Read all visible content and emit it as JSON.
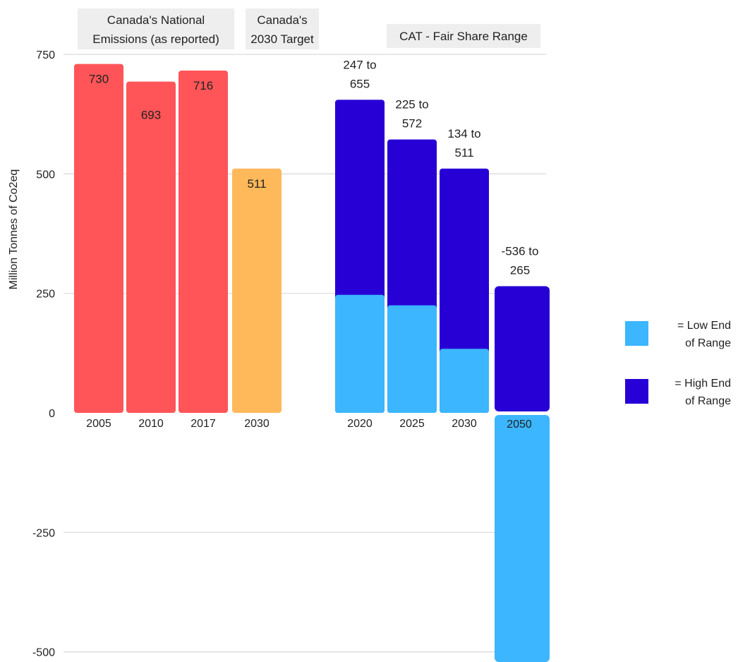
{
  "chart_data": {
    "type": "bar",
    "ylabel": "Million Tonnes of Co2eq",
    "ylim": [
      -525,
      760
    ],
    "yticks": [
      750,
      500,
      250,
      0,
      -250,
      -500
    ],
    "grid": true,
    "legend_position": "right",
    "group_headers": [
      {
        "lines": [
          "Canada's National",
          "Emissions (as reported)"
        ]
      },
      {
        "lines": [
          "Canada's",
          "2030 Target"
        ]
      },
      {
        "lines": [
          "CAT - Fair Share Range"
        ]
      }
    ],
    "groups": [
      {
        "name": "Canada's National Emissions (as reported)",
        "bars": [
          {
            "category": "2005",
            "value": 730,
            "label": "730"
          },
          {
            "category": "2010",
            "value": 693,
            "label": "693"
          },
          {
            "category": "2017",
            "value": 716,
            "label": "716"
          }
        ]
      },
      {
        "name": "Canada's 2030 Target",
        "bars": [
          {
            "category": "2030",
            "value": 511,
            "label": "511"
          }
        ]
      },
      {
        "name": "CAT - Fair Share Range",
        "bars": [
          {
            "category": "2020",
            "low": 247,
            "high": 655,
            "label_lines": [
              "247 to",
              "655"
            ]
          },
          {
            "category": "2025",
            "low": 225,
            "high": 572,
            "label_lines": [
              "225 to",
              "572"
            ]
          },
          {
            "category": "2030",
            "low": 134,
            "high": 511,
            "label_lines": [
              "134 to",
              "511"
            ]
          },
          {
            "category": "2050",
            "low": -536,
            "high": 265,
            "label_lines": [
              "-536 to",
              "265"
            ]
          }
        ]
      }
    ],
    "legend": [
      {
        "lines": [
          "= Low End",
          "of Range"
        ],
        "color": "#3bb6ff"
      },
      {
        "lines": [
          "= High End",
          "of Range"
        ],
        "color": "#2700d6"
      }
    ]
  },
  "colors": {
    "reported": "#ff5558",
    "target": "#ffb85a",
    "low_end": "#3bb6ff",
    "high_end": "#2700d6",
    "grid": "#d9d9d9",
    "header_bg": "#eeeeee"
  }
}
